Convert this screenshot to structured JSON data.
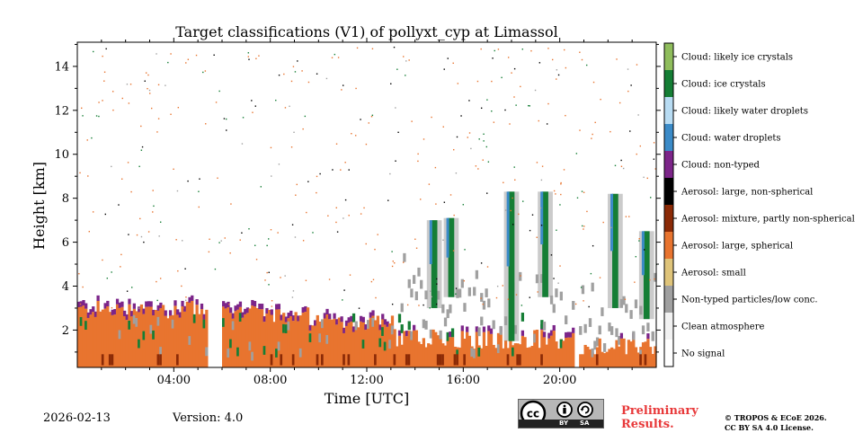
{
  "chart_data": {
    "type": "heatmap",
    "title": "Target classifications (V1) of pollyxt_cyp at Limassol",
    "xlabel": "Time [UTC]",
    "ylabel": "Height [km]",
    "xlim": [
      0,
      24
    ],
    "ylim": [
      0.3,
      15.1
    ],
    "x_ticks": [
      {
        "value": 4,
        "label": "04:00"
      },
      {
        "value": 8,
        "label": "08:00"
      },
      {
        "value": 12,
        "label": "12:00"
      },
      {
        "value": 16,
        "label": "16:00"
      },
      {
        "value": 20,
        "label": "20:00"
      }
    ],
    "y_ticks": [
      {
        "value": 2,
        "label": "2"
      },
      {
        "value": 4,
        "label": "4"
      },
      {
        "value": 6,
        "label": "6"
      },
      {
        "value": 8,
        "label": "8"
      },
      {
        "value": 10,
        "label": "10"
      },
      {
        "value": 12,
        "label": "12"
      },
      {
        "value": 14,
        "label": "14"
      }
    ],
    "classes": [
      {
        "id": 0,
        "label": "No signal",
        "color": "#ffffff"
      },
      {
        "id": 1,
        "label": "Clean atmosphere",
        "color": "#f2f2f2"
      },
      {
        "id": 2,
        "label": "Non-typed particles/low conc.",
        "color": "#a0a0a0"
      },
      {
        "id": 3,
        "label": "Aerosol: small",
        "color": "#dfc47a"
      },
      {
        "id": 4,
        "label": "Aerosol: large, spherical",
        "color": "#e8742f"
      },
      {
        "id": 5,
        "label": "Aerosol: mixture, partly non-spherical",
        "color": "#8b2a06"
      },
      {
        "id": 6,
        "label": "Aerosol: large, non-spherical",
        "color": "#000000"
      },
      {
        "id": 7,
        "label": "Cloud: non-typed",
        "color": "#7c2589"
      },
      {
        "id": 8,
        "label": "Cloud: water droplets",
        "color": "#3b8bc8"
      },
      {
        "id": 9,
        "label": "Cloud: likely water droplets",
        "color": "#b8dcf3"
      },
      {
        "id": 10,
        "label": "Cloud: ice crystals",
        "color": "#157e35"
      },
      {
        "id": 11,
        "label": "Cloud: likely ice crystals",
        "color": "#8fbd5c"
      }
    ],
    "approx_features": {
      "aerosol_layer_top_km": [
        {
          "from_h": 0.0,
          "to_h": 5.4,
          "top": 2.9
        },
        {
          "from_h": 5.4,
          "to_h": 5.9,
          "top": null
        },
        {
          "from_h": 5.9,
          "to_h": 9.5,
          "top": 2.8
        },
        {
          "from_h": 9.5,
          "to_h": 13.0,
          "top": 2.3
        },
        {
          "from_h": 13.0,
          "to_h": 20.6,
          "top": 1.6
        },
        {
          "from_h": 20.6,
          "to_h": 24.0,
          "top": 1.2
        }
      ],
      "gaps_h": [
        [
          5.35,
          5.9
        ],
        [
          20.55,
          20.75
        ]
      ],
      "ice_streaks": [
        {
          "t": 14.8,
          "bottom": 3.0,
          "top": 7.0
        },
        {
          "t": 15.5,
          "bottom": 3.5,
          "top": 7.1
        },
        {
          "t": 18.0,
          "bottom": 1.5,
          "top": 8.3
        },
        {
          "t": 19.4,
          "bottom": 3.5,
          "top": 8.3
        },
        {
          "t": 22.3,
          "bottom": 3.0,
          "top": 8.2
        },
        {
          "t": 23.6,
          "bottom": 2.5,
          "top": 6.5
        }
      ]
    }
  },
  "footer": {
    "date": "2026-02-13",
    "version": "Version: 4.0",
    "preliminary_line1": "Preliminary",
    "preliminary_line2": "Results.",
    "license_line1": "© TROPOS & ECoE 2026.",
    "license_line2": "CC BY SA 4.0 License.",
    "cc_badge": {
      "label": "cc",
      "by_label": "BY",
      "sa_label": "SA",
      "icons": [
        "creative-commons-icon",
        "attribution-icon",
        "share-alike-icon"
      ]
    }
  }
}
